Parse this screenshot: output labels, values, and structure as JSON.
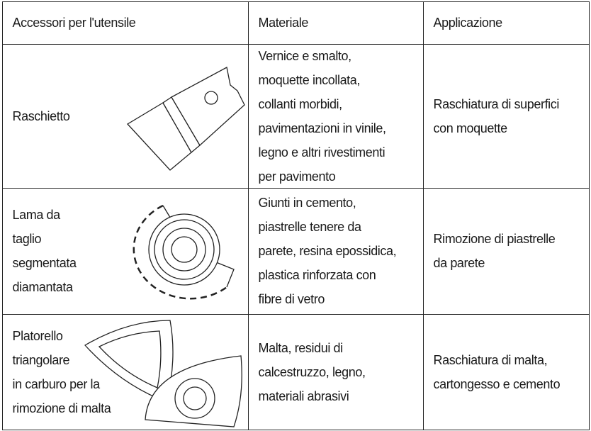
{
  "table": {
    "header": [
      "Accessori per l'utensile",
      "Materiale",
      "Applicazione"
    ],
    "rows": [
      [
        [
          "Raschietto"
        ],
        [
          "Vernice e smalto,",
          "moquette incollata,",
          "collanti morbidi,",
          "pavimentazioni in vinile,",
          "legno e altri rivestimenti",
          "per pavimento"
        ],
        [
          "Raschiatura di superfici",
          "con moquette"
        ]
      ],
      [
        [
          "Lama da",
          "taglio",
          "segmentata",
          "diamantata"
        ],
        [
          "Giunti in cemento,",
          "piastrelle tenere da",
          "parete, resina epossidica,",
          "plastica rinforzata con",
          "fibre di vetro"
        ],
        [
          "Rimozione di piastrelle",
          "da parete"
        ]
      ],
      [
        [
          "Platorello",
          "triangolare",
          "in carburo per la",
          "rimozione di malta"
        ],
        [
          "Malta, residui di",
          "calcestruzzo, legno,",
          "materiali abrasivi"
        ],
        [
          "Raschiatura di malta,",
          "cartongesso e cemento"
        ]
      ]
    ]
  }
}
